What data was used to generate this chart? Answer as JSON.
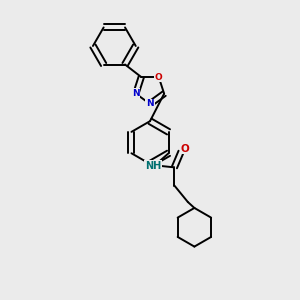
{
  "bg_color": "#ebebeb",
  "line_color": "#000000",
  "N_color": "#0000cc",
  "O_color": "#cc0000",
  "NH_color": "#007070",
  "figsize": [
    3.0,
    3.0
  ],
  "dpi": 100,
  "lw": 1.4,
  "xlim": [
    0,
    10
  ],
  "ylim": [
    0,
    10
  ]
}
